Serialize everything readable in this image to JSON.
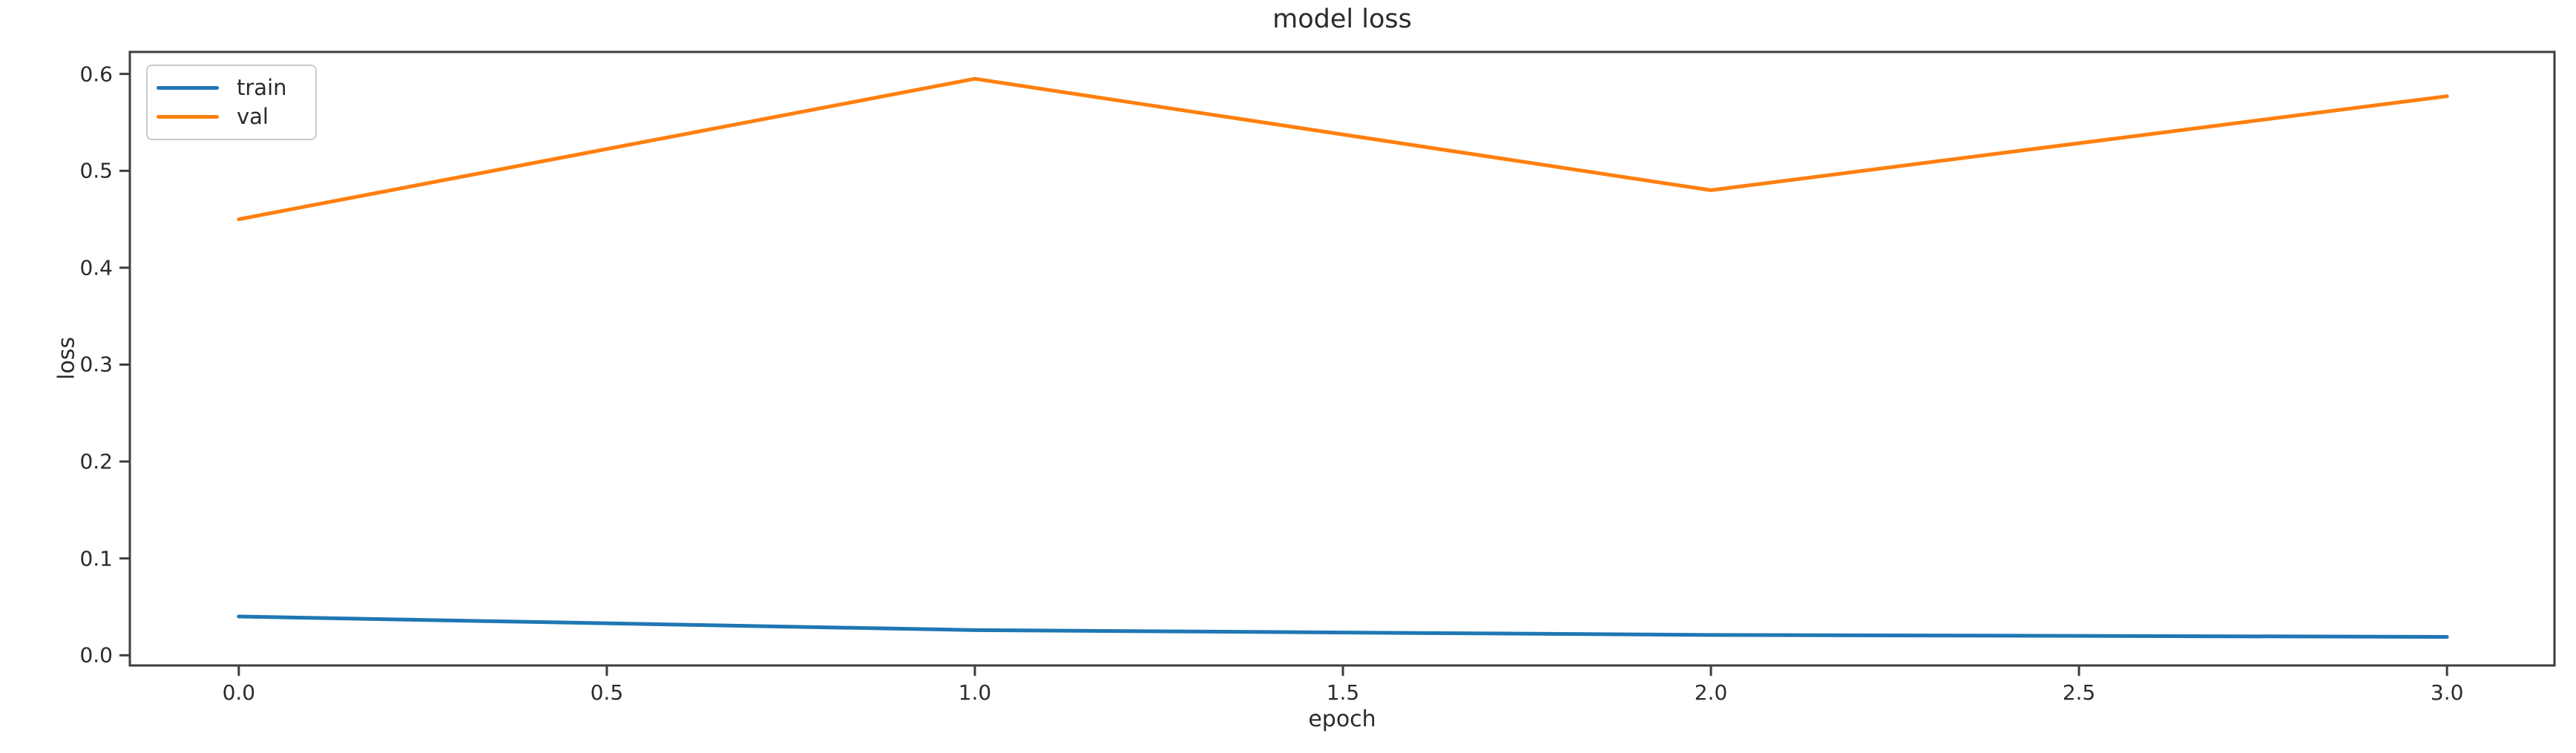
{
  "chart_data": {
    "type": "line",
    "title": "model loss",
    "xlabel": "epoch",
    "ylabel": "loss",
    "x": [
      0,
      1,
      2,
      3
    ],
    "series": [
      {
        "name": "train",
        "color": "#1f77b4",
        "values": [
          0.04,
          0.026,
          0.021,
          0.019
        ]
      },
      {
        "name": "val",
        "color": "#ff7f0e",
        "values": [
          0.45,
          0.595,
          0.48,
          0.577
        ]
      }
    ],
    "xticks": [
      0.0,
      0.5,
      1.0,
      1.5,
      2.0,
      2.5,
      3.0
    ],
    "xtick_labels": [
      "0.0",
      "0.5",
      "1.0",
      "1.5",
      "2.0",
      "2.5",
      "3.0"
    ],
    "yticks": [
      0.0,
      0.1,
      0.2,
      0.3,
      0.4,
      0.5,
      0.6
    ],
    "ytick_labels": [
      "0.0",
      "0.1",
      "0.2",
      "0.3",
      "0.4",
      "0.5",
      "0.6"
    ],
    "xlim": [
      -0.148,
      3.146
    ],
    "ylim": [
      -0.0105,
      0.6227
    ],
    "grid": false,
    "legend_position": "upper-left",
    "spine_color": "#3d3d3d",
    "line_width": 5
  }
}
